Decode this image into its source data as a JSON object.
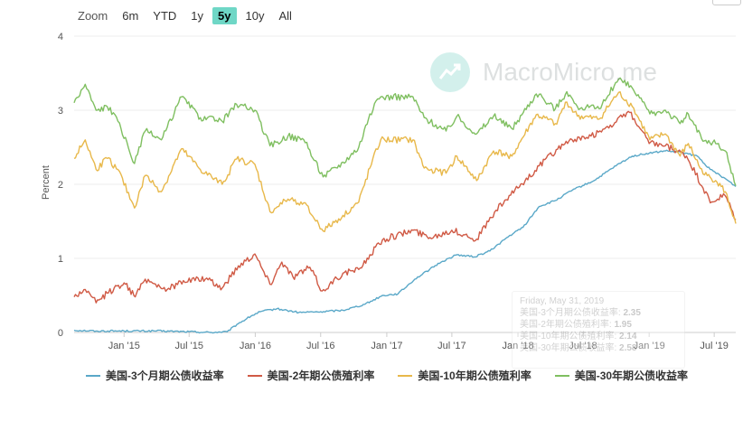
{
  "zoom": {
    "label": "Zoom",
    "options": [
      "6m",
      "YTD",
      "1y",
      "5y",
      "10y",
      "All"
    ],
    "active": "5y"
  },
  "watermark": {
    "text": "MacroMicro.me",
    "logo_icon": "line-chart-icon"
  },
  "tooltip": {
    "date": "Friday, May 31, 2019",
    "rows": [
      {
        "label": "美国-3个月期公债收益率",
        "value": "2.35"
      },
      {
        "label": "美国-2年期公债殖利率",
        "value": "1.95"
      },
      {
        "label": "美国-10年期公债殖利率",
        "value": "2.14"
      },
      {
        "label": "美国-30年期公债收益率",
        "value": "2.58"
      }
    ]
  },
  "chart_data": {
    "type": "line",
    "title": "",
    "xlabel": "",
    "ylabel": "Percent",
    "ylim": [
      0,
      4
    ],
    "y_ticks": [
      0,
      1,
      2,
      3,
      4
    ],
    "x_range": [
      "2014-08-15",
      "2019-08-30"
    ],
    "x_ticks": [
      {
        "date": "2015-01-01",
        "label": "Jan '15"
      },
      {
        "date": "2015-07-01",
        "label": "Jul '15"
      },
      {
        "date": "2016-01-01",
        "label": "Jan '16"
      },
      {
        "date": "2016-07-01",
        "label": "Jul '16"
      },
      {
        "date": "2017-01-01",
        "label": "Jan '17"
      },
      {
        "date": "2017-07-01",
        "label": "Jul '17"
      },
      {
        "date": "2018-01-01",
        "label": "Jan '18"
      },
      {
        "date": "2018-07-01",
        "label": "Jul '18"
      },
      {
        "date": "2019-01-01",
        "label": "Jan '19"
      },
      {
        "date": "2019-07-01",
        "label": "Jul '19"
      }
    ],
    "grid": true,
    "legend_position": "bottom",
    "series": [
      {
        "name": "美国-3个月期公债收益率",
        "color": "#5aa8c8",
        "points": [
          [
            "2014-08-15",
            0.03
          ],
          [
            "2014-10-15",
            0.02
          ],
          [
            "2015-01-01",
            0.02
          ],
          [
            "2015-04-01",
            0.02
          ],
          [
            "2015-07-01",
            0.01
          ],
          [
            "2015-09-01",
            0.0
          ],
          [
            "2015-10-15",
            0.01
          ],
          [
            "2015-11-15",
            0.12
          ],
          [
            "2015-12-20",
            0.22
          ],
          [
            "2016-01-15",
            0.28
          ],
          [
            "2016-03-01",
            0.32
          ],
          [
            "2016-05-01",
            0.27
          ],
          [
            "2016-07-01",
            0.28
          ],
          [
            "2016-09-01",
            0.3
          ],
          [
            "2016-11-01",
            0.38
          ],
          [
            "2016-12-20",
            0.5
          ],
          [
            "2017-02-01",
            0.52
          ],
          [
            "2017-03-20",
            0.72
          ],
          [
            "2017-06-01",
            0.95
          ],
          [
            "2017-07-15",
            1.05
          ],
          [
            "2017-09-01",
            1.02
          ],
          [
            "2017-10-15",
            1.1
          ],
          [
            "2017-12-01",
            1.28
          ],
          [
            "2018-01-15",
            1.42
          ],
          [
            "2018-03-01",
            1.7
          ],
          [
            "2018-04-15",
            1.78
          ],
          [
            "2018-06-01",
            1.92
          ],
          [
            "2018-08-01",
            2.05
          ],
          [
            "2018-10-01",
            2.25
          ],
          [
            "2018-11-15",
            2.38
          ],
          [
            "2019-01-01",
            2.42
          ],
          [
            "2019-02-15",
            2.45
          ],
          [
            "2019-04-01",
            2.43
          ],
          [
            "2019-05-15",
            2.38
          ],
          [
            "2019-06-20",
            2.2
          ],
          [
            "2019-07-31",
            2.08
          ],
          [
            "2019-08-30",
            1.97
          ]
        ]
      },
      {
        "name": "美国-2年期公债殖利率",
        "color": "#d05a45",
        "points": [
          [
            "2014-08-15",
            0.48
          ],
          [
            "2014-09-15",
            0.58
          ],
          [
            "2014-10-15",
            0.4
          ],
          [
            "2014-11-15",
            0.53
          ],
          [
            "2015-01-01",
            0.67
          ],
          [
            "2015-02-01",
            0.48
          ],
          [
            "2015-03-01",
            0.72
          ],
          [
            "2015-05-01",
            0.58
          ],
          [
            "2015-06-15",
            0.7
          ],
          [
            "2015-08-15",
            0.72
          ],
          [
            "2015-10-01",
            0.6
          ],
          [
            "2015-11-15",
            0.9
          ],
          [
            "2015-12-31",
            1.06
          ],
          [
            "2016-02-11",
            0.65
          ],
          [
            "2016-03-15",
            0.95
          ],
          [
            "2016-04-15",
            0.75
          ],
          [
            "2016-06-01",
            0.88
          ],
          [
            "2016-07-05",
            0.56
          ],
          [
            "2016-09-01",
            0.8
          ],
          [
            "2016-10-15",
            0.85
          ],
          [
            "2016-11-15",
            1.05
          ],
          [
            "2016-12-20",
            1.25
          ],
          [
            "2017-03-15",
            1.38
          ],
          [
            "2017-05-01",
            1.28
          ],
          [
            "2017-07-01",
            1.38
          ],
          [
            "2017-09-08",
            1.26
          ],
          [
            "2017-11-01",
            1.65
          ],
          [
            "2018-01-01",
            1.95
          ],
          [
            "2018-03-01",
            2.25
          ],
          [
            "2018-05-15",
            2.58
          ],
          [
            "2018-07-15",
            2.62
          ],
          [
            "2018-09-15",
            2.8
          ],
          [
            "2018-11-08",
            2.97
          ],
          [
            "2019-01-01",
            2.55
          ],
          [
            "2019-02-15",
            2.52
          ],
          [
            "2019-04-15",
            2.38
          ],
          [
            "2019-05-31",
            1.95
          ],
          [
            "2019-06-20",
            1.75
          ],
          [
            "2019-07-31",
            1.85
          ],
          [
            "2019-08-30",
            1.52
          ]
        ]
      },
      {
        "name": "美国-10年期公债殖利率",
        "color": "#e8b84a",
        "points": [
          [
            "2014-08-15",
            2.35
          ],
          [
            "2014-09-15",
            2.6
          ],
          [
            "2014-10-15",
            2.2
          ],
          [
            "2014-11-15",
            2.35
          ],
          [
            "2014-12-15",
            2.2
          ],
          [
            "2015-01-30",
            1.68
          ],
          [
            "2015-03-01",
            2.12
          ],
          [
            "2015-04-15",
            1.9
          ],
          [
            "2015-06-10",
            2.48
          ],
          [
            "2015-08-01",
            2.2
          ],
          [
            "2015-10-01",
            2.0
          ],
          [
            "2015-11-10",
            2.34
          ],
          [
            "2015-12-31",
            2.27
          ],
          [
            "2016-02-11",
            1.63
          ],
          [
            "2016-04-01",
            1.8
          ],
          [
            "2016-05-15",
            1.75
          ],
          [
            "2016-07-08",
            1.37
          ],
          [
            "2016-09-01",
            1.58
          ],
          [
            "2016-10-15",
            1.76
          ],
          [
            "2016-11-15",
            2.22
          ],
          [
            "2016-12-15",
            2.6
          ],
          [
            "2017-03-15",
            2.6
          ],
          [
            "2017-04-15",
            2.22
          ],
          [
            "2017-06-15",
            2.15
          ],
          [
            "2017-07-15",
            2.38
          ],
          [
            "2017-09-08",
            2.05
          ],
          [
            "2017-10-25",
            2.45
          ],
          [
            "2017-12-15",
            2.38
          ],
          [
            "2018-02-21",
            2.94
          ],
          [
            "2018-04-15",
            2.82
          ],
          [
            "2018-05-17",
            3.11
          ],
          [
            "2018-06-15",
            2.92
          ],
          [
            "2018-08-15",
            2.88
          ],
          [
            "2018-10-08",
            3.24
          ],
          [
            "2018-11-15",
            3.05
          ],
          [
            "2019-01-03",
            2.6
          ],
          [
            "2019-02-15",
            2.68
          ],
          [
            "2019-03-28",
            2.38
          ],
          [
            "2019-04-20",
            2.55
          ],
          [
            "2019-05-31",
            2.14
          ],
          [
            "2019-07-05",
            2.05
          ],
          [
            "2019-08-01",
            1.9
          ],
          [
            "2019-08-30",
            1.47
          ]
        ]
      },
      {
        "name": "美国-30年期公债收益率",
        "color": "#7fbf60",
        "points": [
          [
            "2014-08-15",
            3.1
          ],
          [
            "2014-09-15",
            3.35
          ],
          [
            "2014-10-15",
            3.0
          ],
          [
            "2014-11-15",
            3.05
          ],
          [
            "2014-12-15",
            2.85
          ],
          [
            "2015-01-30",
            2.28
          ],
          [
            "2015-03-01",
            2.72
          ],
          [
            "2015-04-15",
            2.6
          ],
          [
            "2015-06-10",
            3.18
          ],
          [
            "2015-08-01",
            2.9
          ],
          [
            "2015-10-01",
            2.85
          ],
          [
            "2015-11-10",
            3.08
          ],
          [
            "2015-12-31",
            3.0
          ],
          [
            "2016-02-11",
            2.52
          ],
          [
            "2016-04-01",
            2.65
          ],
          [
            "2016-05-15",
            2.6
          ],
          [
            "2016-07-08",
            2.1
          ],
          [
            "2016-09-01",
            2.3
          ],
          [
            "2016-10-15",
            2.5
          ],
          [
            "2016-11-15",
            2.95
          ],
          [
            "2016-12-15",
            3.18
          ],
          [
            "2017-03-15",
            3.18
          ],
          [
            "2017-04-15",
            2.9
          ],
          [
            "2017-06-15",
            2.72
          ],
          [
            "2017-07-15",
            2.92
          ],
          [
            "2017-09-08",
            2.68
          ],
          [
            "2017-10-25",
            2.92
          ],
          [
            "2017-12-15",
            2.75
          ],
          [
            "2018-02-21",
            3.22
          ],
          [
            "2018-04-15",
            3.02
          ],
          [
            "2018-05-17",
            3.25
          ],
          [
            "2018-06-15",
            3.05
          ],
          [
            "2018-08-15",
            3.02
          ],
          [
            "2018-10-08",
            3.42
          ],
          [
            "2018-11-15",
            3.3
          ],
          [
            "2019-01-03",
            2.95
          ],
          [
            "2019-02-15",
            3.0
          ],
          [
            "2019-03-28",
            2.82
          ],
          [
            "2019-04-20",
            2.95
          ],
          [
            "2019-05-31",
            2.58
          ],
          [
            "2019-07-05",
            2.55
          ],
          [
            "2019-08-01",
            2.45
          ],
          [
            "2019-08-30",
            1.98
          ]
        ]
      }
    ]
  }
}
